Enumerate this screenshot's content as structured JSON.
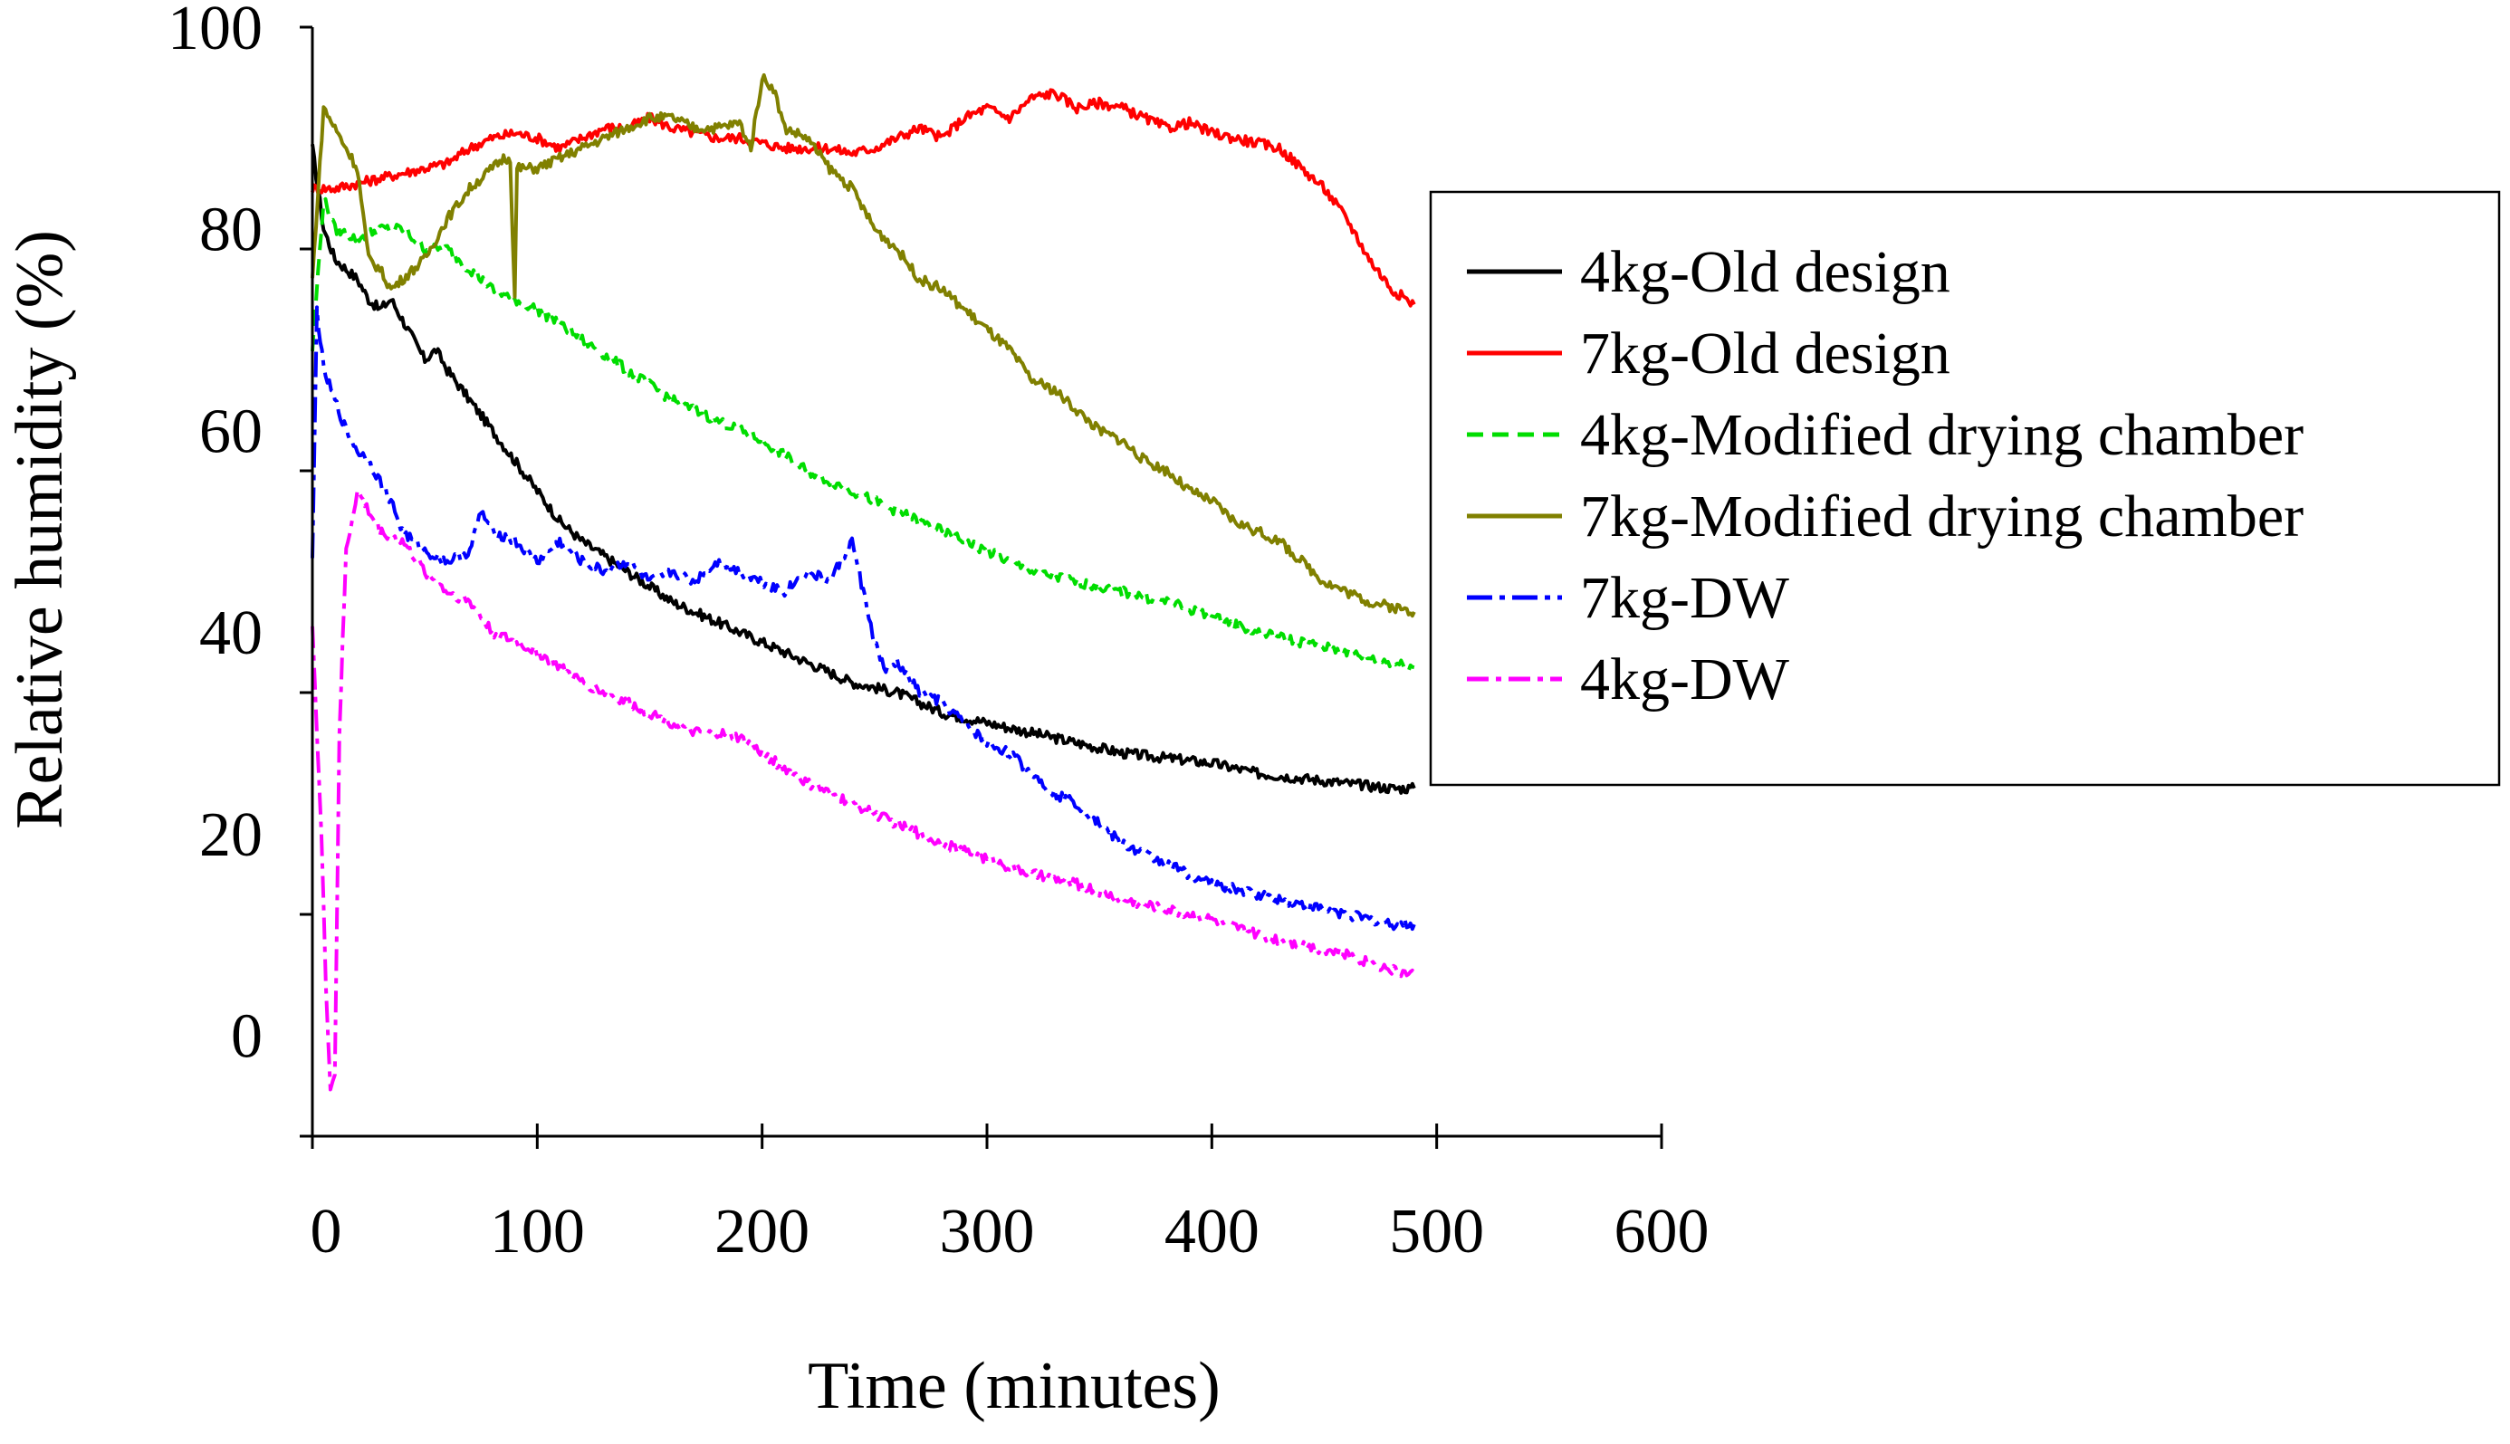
{
  "chart_data": {
    "type": "line",
    "xlabel": "Time (minutes)",
    "ylabel": "Relative humidity (%)",
    "xlim": [
      0,
      600
    ],
    "ylim": [
      -10,
      100
    ],
    "x_ticks": [
      0,
      100,
      200,
      300,
      400,
      500,
      600
    ],
    "y_ticks": [
      0,
      20,
      40,
      60,
      80,
      100
    ],
    "x_tick_labels": [
      "0",
      "100",
      "200",
      "300",
      "400",
      "500",
      "600"
    ],
    "y_tick_labels": [
      "0",
      "20",
      "40",
      "60",
      "80",
      "100"
    ],
    "grid": false,
    "legend_position": "right",
    "series": [
      {
        "name": "4kg-Old design",
        "color": "#000000",
        "dash": "solid",
        "points": [
          [
            0,
            88
          ],
          [
            5,
            80
          ],
          [
            10,
            77
          ],
          [
            15,
            76
          ],
          [
            20,
            75
          ],
          [
            25,
            73
          ],
          [
            30,
            72
          ],
          [
            35,
            73
          ],
          [
            40,
            71
          ],
          [
            45,
            69
          ],
          [
            50,
            67
          ],
          [
            55,
            68
          ],
          [
            60,
            66
          ],
          [
            70,
            63
          ],
          [
            80,
            60
          ],
          [
            90,
            57
          ],
          [
            100,
            54
          ],
          [
            110,
            51
          ],
          [
            120,
            49
          ],
          [
            140,
            46
          ],
          [
            160,
            43
          ],
          [
            180,
            41
          ],
          [
            200,
            39
          ],
          [
            220,
            37
          ],
          [
            240,
            35
          ],
          [
            260,
            34
          ],
          [
            280,
            32
          ],
          [
            300,
            31
          ],
          [
            320,
            30
          ],
          [
            340,
            29
          ],
          [
            360,
            28
          ],
          [
            380,
            27.5
          ],
          [
            400,
            27
          ],
          [
            420,
            26
          ],
          [
            440,
            25.5
          ],
          [
            460,
            25
          ],
          [
            480,
            24.5
          ],
          [
            490,
            24.5
          ]
        ]
      },
      {
        "name": "7kg-Old design",
        "color": "#ff0000",
        "dash": "solid",
        "points": [
          [
            0,
            84
          ],
          [
            10,
            84
          ],
          [
            20,
            84.5
          ],
          [
            30,
            85
          ],
          [
            40,
            85.5
          ],
          [
            50,
            86
          ],
          [
            60,
            86.5
          ],
          [
            70,
            88
          ],
          [
            80,
            89
          ],
          [
            90,
            89.5
          ],
          [
            100,
            89
          ],
          [
            110,
            88
          ],
          [
            120,
            89
          ],
          [
            130,
            90
          ],
          [
            140,
            90
          ],
          [
            150,
            91
          ],
          [
            160,
            90
          ],
          [
            170,
            89.5
          ],
          [
            180,
            89
          ],
          [
            190,
            89
          ],
          [
            200,
            88.5
          ],
          [
            210,
            88
          ],
          [
            220,
            88
          ],
          [
            230,
            88
          ],
          [
            240,
            87.5
          ],
          [
            250,
            88
          ],
          [
            260,
            89
          ],
          [
            270,
            90
          ],
          [
            280,
            89
          ],
          [
            290,
            91
          ],
          [
            300,
            92
          ],
          [
            310,
            91
          ],
          [
            320,
            93
          ],
          [
            330,
            93.5
          ],
          [
            340,
            92
          ],
          [
            350,
            92.5
          ],
          [
            360,
            92
          ],
          [
            370,
            91
          ],
          [
            380,
            90
          ],
          [
            390,
            90.5
          ],
          [
            400,
            89.5
          ],
          [
            410,
            89
          ],
          [
            420,
            88.5
          ],
          [
            430,
            88
          ],
          [
            440,
            86
          ],
          [
            450,
            84
          ],
          [
            460,
            81
          ],
          [
            470,
            77
          ],
          [
            480,
            74
          ],
          [
            490,
            72.5
          ]
        ]
      },
      {
        "name": "4kg-Modified drying chamber",
        "color": "#00dd00",
        "dash": "18,10",
        "points": [
          [
            0,
            68
          ],
          [
            5,
            83
          ],
          [
            10,
            80
          ],
          [
            20,
            79
          ],
          [
            30,
            80
          ],
          [
            40,
            80
          ],
          [
            50,
            78
          ],
          [
            60,
            78
          ],
          [
            70,
            76
          ],
          [
            80,
            74
          ],
          [
            100,
            72
          ],
          [
            120,
            69
          ],
          [
            140,
            66
          ],
          [
            160,
            63
          ],
          [
            180,
            61
          ],
          [
            200,
            59
          ],
          [
            220,
            56
          ],
          [
            240,
            54
          ],
          [
            260,
            52
          ],
          [
            280,
            50
          ],
          [
            300,
            48
          ],
          [
            320,
            46
          ],
          [
            340,
            45
          ],
          [
            360,
            44
          ],
          [
            380,
            43
          ],
          [
            400,
            41.5
          ],
          [
            420,
            40
          ],
          [
            440,
            39
          ],
          [
            460,
            38
          ],
          [
            480,
            37
          ],
          [
            490,
            36.5
          ]
        ]
      },
      {
        "name": "7kg-Modified drying chamber",
        "color": "#808000",
        "dash": "solid",
        "points": [
          [
            0,
            75
          ],
          [
            5,
            92
          ],
          [
            10,
            90
          ],
          [
            15,
            88
          ],
          [
            20,
            86
          ],
          [
            25,
            77
          ],
          [
            30,
            76
          ],
          [
            35,
            74
          ],
          [
            40,
            75
          ],
          [
            50,
            77
          ],
          [
            60,
            81
          ],
          [
            70,
            84
          ],
          [
            80,
            86
          ],
          [
            85,
            87
          ],
          [
            88,
            87
          ],
          [
            90,
            73
          ],
          [
            91,
            86
          ],
          [
            100,
            86
          ],
          [
            110,
            87
          ],
          [
            120,
            88
          ],
          [
            130,
            89
          ],
          [
            140,
            90
          ],
          [
            150,
            91
          ],
          [
            160,
            91
          ],
          [
            170,
            90
          ],
          [
            180,
            90
          ],
          [
            190,
            90.5
          ],
          [
            195,
            88
          ],
          [
            200,
            95
          ],
          [
            205,
            94
          ],
          [
            210,
            90
          ],
          [
            220,
            89
          ],
          [
            230,
            86
          ],
          [
            240,
            84
          ],
          [
            250,
            80
          ],
          [
            260,
            78
          ],
          [
            270,
            75
          ],
          [
            280,
            74
          ],
          [
            290,
            72
          ],
          [
            300,
            70
          ],
          [
            310,
            68
          ],
          [
            320,
            65
          ],
          [
            330,
            64
          ],
          [
            340,
            62
          ],
          [
            350,
            60
          ],
          [
            360,
            59
          ],
          [
            370,
            57
          ],
          [
            380,
            56
          ],
          [
            390,
            54
          ],
          [
            400,
            53
          ],
          [
            410,
            51
          ],
          [
            420,
            50
          ],
          [
            430,
            49
          ],
          [
            440,
            47
          ],
          [
            450,
            45
          ],
          [
            460,
            44
          ],
          [
            470,
            43
          ],
          [
            480,
            42.5
          ],
          [
            490,
            42
          ]
        ]
      },
      {
        "name": "7kg-DW",
        "color": "#0000ff",
        "dash": "28,8,6,8",
        "points": [
          [
            0,
            47
          ],
          [
            2,
            72
          ],
          [
            5,
            66
          ],
          [
            10,
            63
          ],
          [
            15,
            60
          ],
          [
            20,
            58
          ],
          [
            25,
            57
          ],
          [
            30,
            55
          ],
          [
            35,
            53
          ],
          [
            40,
            50
          ],
          [
            50,
            48
          ],
          [
            60,
            47
          ],
          [
            70,
            48
          ],
          [
            75,
            52
          ],
          [
            80,
            50
          ],
          [
            90,
            49
          ],
          [
            100,
            47
          ],
          [
            110,
            49
          ],
          [
            120,
            47
          ],
          [
            130,
            46
          ],
          [
            140,
            47
          ],
          [
            150,
            45
          ],
          [
            160,
            46
          ],
          [
            170,
            45
          ],
          [
            180,
            47
          ],
          [
            190,
            46
          ],
          [
            200,
            45
          ],
          [
            210,
            44
          ],
          [
            220,
            46
          ],
          [
            230,
            45
          ],
          [
            240,
            49
          ],
          [
            250,
            39
          ],
          [
            255,
            36
          ],
          [
            260,
            37
          ],
          [
            270,
            34
          ],
          [
            280,
            33
          ],
          [
            290,
            31
          ],
          [
            300,
            29
          ],
          [
            310,
            28
          ],
          [
            320,
            26
          ],
          [
            330,
            24
          ],
          [
            340,
            23
          ],
          [
            350,
            21
          ],
          [
            360,
            19
          ],
          [
            370,
            18
          ],
          [
            380,
            17
          ],
          [
            390,
            16
          ],
          [
            400,
            15
          ],
          [
            420,
            14
          ],
          [
            440,
            13
          ],
          [
            460,
            12
          ],
          [
            480,
            11
          ],
          [
            490,
            11
          ]
        ]
      },
      {
        "name": "4kg-DW",
        "color": "#ff00ff",
        "dash": "24,8,6,8",
        "points": [
          [
            0,
            41
          ],
          [
            2,
            30
          ],
          [
            4,
            20
          ],
          [
            6,
            5
          ],
          [
            8,
            -5
          ],
          [
            10,
            -4
          ],
          [
            12,
            30
          ],
          [
            15,
            48
          ],
          [
            20,
            54
          ],
          [
            25,
            52
          ],
          [
            30,
            50
          ],
          [
            40,
            49
          ],
          [
            50,
            46
          ],
          [
            60,
            44
          ],
          [
            70,
            43
          ],
          [
            80,
            40
          ],
          [
            100,
            38
          ],
          [
            120,
            35
          ],
          [
            140,
            33
          ],
          [
            160,
            31
          ],
          [
            170,
            30
          ],
          [
            180,
            30
          ],
          [
            190,
            29.5
          ],
          [
            200,
            28
          ],
          [
            220,
            25
          ],
          [
            240,
            23
          ],
          [
            260,
            21
          ],
          [
            280,
            19
          ],
          [
            300,
            17.5
          ],
          [
            320,
            16
          ],
          [
            340,
            15
          ],
          [
            360,
            13.5
          ],
          [
            380,
            12.5
          ],
          [
            400,
            11.5
          ],
          [
            420,
            10
          ],
          [
            440,
            9
          ],
          [
            460,
            8
          ],
          [
            480,
            6.5
          ],
          [
            490,
            6
          ]
        ]
      }
    ]
  }
}
